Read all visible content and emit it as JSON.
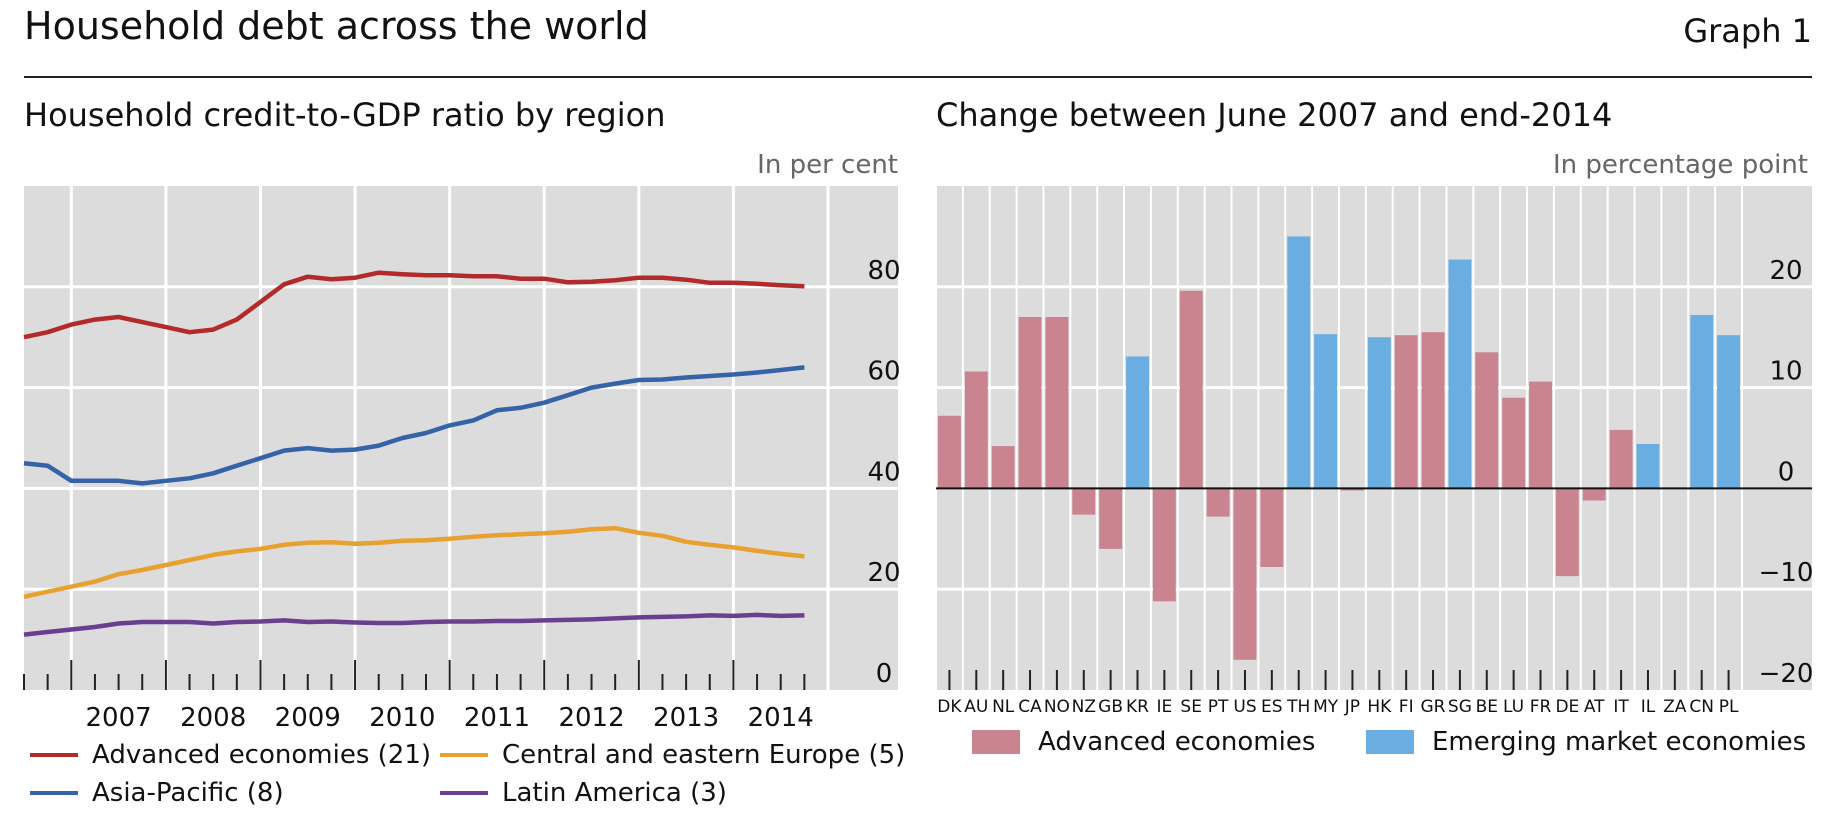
{
  "header": {
    "title": "Household debt across the world",
    "graph_label": "Graph 1"
  },
  "left": {
    "subtitle": "Household credit-to-GDP ratio by region",
    "unit": "In per cent"
  },
  "right": {
    "subtitle": "Change between June 2007 and end-2014",
    "unit": "In percentage point"
  },
  "chart_data": [
    {
      "type": "line",
      "title": "Household credit-to-GDP ratio by region",
      "ylabel": "In per cent",
      "ylim": [
        0,
        100
      ],
      "yticks": [
        0,
        20,
        40,
        60,
        80
      ],
      "xlim": [
        2006.5,
        2015.0
      ],
      "xtick_labels": [
        "2007",
        "2008",
        "2009",
        "2010",
        "2011",
        "2012",
        "2013",
        "2014"
      ],
      "grid": true,
      "legend_position": "bottom",
      "series": [
        {
          "name": "Advanced economies (21)",
          "color": "#b22a2a",
          "x": [
            2006.5,
            2006.75,
            2007.0,
            2007.25,
            2007.5,
            2007.75,
            2008.0,
            2008.25,
            2008.5,
            2008.75,
            2009.0,
            2009.25,
            2009.5,
            2009.75,
            2010.0,
            2010.25,
            2010.5,
            2010.75,
            2011.0,
            2011.25,
            2011.5,
            2011.75,
            2012.0,
            2012.25,
            2012.5,
            2012.75,
            2013.0,
            2013.25,
            2013.5,
            2013.75,
            2014.0,
            2014.25,
            2014.5,
            2014.75
          ],
          "y": [
            70.0,
            71.0,
            72.5,
            73.5,
            74.0,
            73.0,
            72.0,
            71.0,
            71.5,
            73.5,
            77.0,
            80.5,
            82.0,
            81.5,
            81.8,
            82.8,
            82.5,
            82.3,
            82.3,
            82.1,
            82.1,
            81.6,
            81.6,
            80.9,
            81.0,
            81.3,
            81.8,
            81.8,
            81.4,
            80.8,
            80.8,
            80.6,
            80.3,
            80.1
          ]
        },
        {
          "name": "Asia-Pacific (8)",
          "color": "#3563a8",
          "x": [
            2006.5,
            2006.75,
            2007.0,
            2007.25,
            2007.5,
            2007.75,
            2008.0,
            2008.25,
            2008.5,
            2008.75,
            2009.0,
            2009.25,
            2009.5,
            2009.75,
            2010.0,
            2010.25,
            2010.5,
            2010.75,
            2011.0,
            2011.25,
            2011.5,
            2011.75,
            2012.0,
            2012.25,
            2012.5,
            2012.75,
            2013.0,
            2013.25,
            2013.5,
            2013.75,
            2014.0,
            2014.25,
            2014.5,
            2014.75
          ],
          "y": [
            45.0,
            44.5,
            41.5,
            41.5,
            41.5,
            41.0,
            41.5,
            42.0,
            43.0,
            44.5,
            46.0,
            47.5,
            48.0,
            47.5,
            47.7,
            48.5,
            50.0,
            51.0,
            52.5,
            53.5,
            55.5,
            56.0,
            57.0,
            58.5,
            60.0,
            60.8,
            61.5,
            61.6,
            62.0,
            62.3,
            62.6,
            63.0,
            63.5,
            64.0
          ]
        },
        {
          "name": "Central and eastern Europe (5)",
          "color": "#e8a030",
          "x": [
            2006.5,
            2006.75,
            2007.0,
            2007.25,
            2007.5,
            2007.75,
            2008.0,
            2008.25,
            2008.5,
            2008.75,
            2009.0,
            2009.25,
            2009.5,
            2009.75,
            2010.0,
            2010.25,
            2010.5,
            2010.75,
            2011.0,
            2011.25,
            2011.5,
            2011.75,
            2012.0,
            2012.25,
            2012.5,
            2012.75,
            2013.0,
            2013.25,
            2013.5,
            2013.75,
            2014.0,
            2014.25,
            2014.5,
            2014.75
          ],
          "y": [
            18.5,
            19.5,
            20.5,
            21.5,
            23.0,
            23.8,
            24.8,
            25.8,
            26.8,
            27.5,
            28.0,
            28.8,
            29.2,
            29.3,
            29.0,
            29.2,
            29.6,
            29.7,
            30.0,
            30.4,
            30.7,
            30.9,
            31.1,
            31.4,
            31.9,
            32.1,
            31.2,
            30.6,
            29.4,
            28.8,
            28.3,
            27.6,
            27.0,
            26.5
          ]
        },
        {
          "name": "Latin America (3)",
          "color": "#6b3f8f",
          "x": [
            2006.5,
            2006.75,
            2007.0,
            2007.25,
            2007.5,
            2007.75,
            2008.0,
            2008.25,
            2008.5,
            2008.75,
            2009.0,
            2009.25,
            2009.5,
            2009.75,
            2010.0,
            2010.25,
            2010.5,
            2010.75,
            2011.0,
            2011.25,
            2011.5,
            2011.75,
            2012.0,
            2012.25,
            2012.5,
            2012.75,
            2013.0,
            2013.25,
            2013.5,
            2013.75,
            2014.0,
            2014.25,
            2014.5,
            2014.75
          ],
          "y": [
            11.0,
            11.5,
            12.0,
            12.5,
            13.2,
            13.5,
            13.5,
            13.5,
            13.2,
            13.5,
            13.6,
            13.8,
            13.5,
            13.6,
            13.4,
            13.3,
            13.3,
            13.5,
            13.6,
            13.6,
            13.7,
            13.7,
            13.8,
            13.9,
            14.0,
            14.2,
            14.4,
            14.5,
            14.6,
            14.8,
            14.7,
            14.9,
            14.7,
            14.8
          ]
        }
      ]
    },
    {
      "type": "bar",
      "title": "Change between June 2007 and end-2014",
      "ylabel": "In percentage point",
      "ylim": [
        -20,
        30
      ],
      "yticks": [
        -20,
        -10,
        0,
        10,
        20
      ],
      "grid": true,
      "legend_position": "bottom",
      "categories": [
        "DK",
        "AU",
        "NL",
        "CA",
        "NO",
        "NZ",
        "GB",
        "KR",
        "IE",
        "SE",
        "PT",
        "US",
        "ES",
        "TH",
        "MY",
        "JP",
        "HK",
        "FI",
        "GR",
        "SG",
        "BE",
        "LU",
        "FR",
        "DE",
        "AT",
        "IT",
        "IL",
        "ZA",
        "CN",
        "PL"
      ],
      "values": [
        7.2,
        11.6,
        4.2,
        17.0,
        17.0,
        -2.6,
        -6.0,
        13.1,
        -11.2,
        19.6,
        -2.8,
        -17.0,
        -7.8,
        25.0,
        15.3,
        -0.2,
        15.0,
        15.2,
        15.5,
        22.7,
        13.5,
        9.0,
        10.6,
        -8.7,
        -1.2,
        5.8,
        4.4,
        0.0,
        17.2,
        15.2
      ],
      "groups": [
        "adv",
        "adv",
        "adv",
        "adv",
        "adv",
        "adv",
        "adv",
        "eme",
        "adv",
        "adv",
        "adv",
        "adv",
        "adv",
        "eme",
        "eme",
        "adv",
        "eme",
        "adv",
        "adv",
        "eme",
        "adv",
        "adv",
        "adv",
        "adv",
        "adv",
        "adv",
        "eme",
        "eme",
        "eme",
        "eme"
      ],
      "series": [
        {
          "name": "Advanced economies",
          "key": "adv",
          "color": "#c98490"
        },
        {
          "name": "Emerging market economies",
          "key": "eme",
          "color": "#6aade0"
        }
      ]
    }
  ]
}
